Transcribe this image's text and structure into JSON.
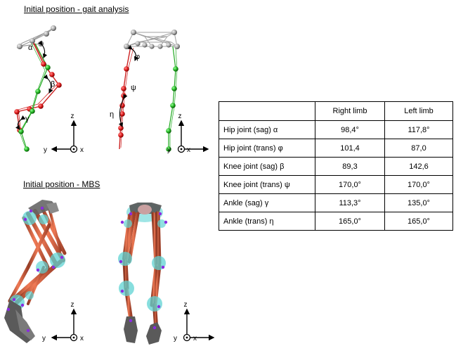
{
  "headings": {
    "gait": "Initial position - gait analysis",
    "mbs": "Initial position - MBS"
  },
  "angle_markers": {
    "alpha": "α",
    "beta": "β",
    "gamma": "γ",
    "phi": "φ",
    "psi": "ψ",
    "eta": "η"
  },
  "axes": {
    "z": "z",
    "y": "y",
    "x": "x"
  },
  "table": {
    "columns": [
      "",
      "Right limb",
      "Left limb"
    ],
    "rows": [
      {
        "label": "Hip joint (sag) α",
        "right": "98,4°",
        "left": "117,8°"
      },
      {
        "label": "Hip joint (trans) φ",
        "right": "101,4",
        "left": "87,0"
      },
      {
        "label": "Knee joint (sag) β",
        "right": "89,3",
        "left": "142,6"
      },
      {
        "label": "Knee joint (trans) ψ",
        "right": "170,0°",
        "left": "170,0°"
      },
      {
        "label": "Ankle (sag) γ",
        "right": "113,3°",
        "left": "135,0°"
      },
      {
        "label": "Ankle (trans) η",
        "right": "165,0°",
        "left": "165,0°"
      }
    ]
  },
  "colors": {
    "right_limb": "#cc2222",
    "left_limb": "#22aa22",
    "marker_grey": "#9a9a9a",
    "mbs_segment": "#d9674a",
    "mbs_joint": "#5fd3d3",
    "mbs_foot": "#555555",
    "mbs_marker": "#8a2be2"
  }
}
